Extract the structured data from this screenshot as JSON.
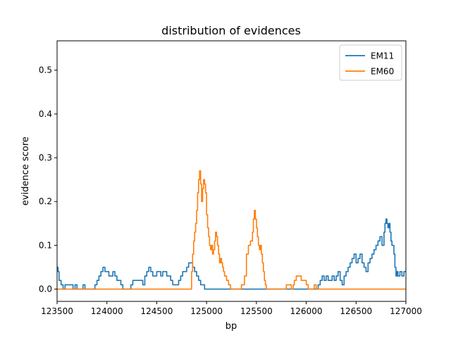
{
  "chart_data": {
    "type": "line",
    "title": "distribution of evidences",
    "xlabel": "bp",
    "ylabel": "evidence score",
    "xlim": [
      123500,
      127000
    ],
    "ylim": [
      -0.028,
      0.567
    ],
    "xticks": [
      123500,
      124000,
      124500,
      125000,
      125500,
      126000,
      126500,
      127000
    ],
    "yticks": [
      0.0,
      0.1,
      0.2,
      0.3,
      0.4,
      0.5
    ],
    "ytick_labels": [
      "0.0",
      "0.1",
      "0.2",
      "0.3",
      "0.4",
      "0.5"
    ],
    "grid": false,
    "legend": "top-right",
    "series": [
      {
        "name": "EM11",
        "color": "#1f77b4",
        "x": [
          123500,
          123510,
          123520,
          123540,
          123560,
          123580,
          123660,
          123680,
          123700,
          123760,
          123780,
          123880,
          123900,
          123920,
          123940,
          123960,
          123980,
          124020,
          124060,
          124080,
          124100,
          124140,
          124160,
          124240,
          124260,
          124360,
          124380,
          124400,
          124420,
          124440,
          124460,
          124500,
          124540,
          124560,
          124600,
          124640,
          124660,
          124720,
          124740,
          124760,
          124800,
          124820,
          124860,
          124880,
          124900,
          124920,
          124940,
          124960,
          124980,
          125000,
          125020,
          126080,
          126100,
          126120,
          126140,
          126160,
          126180,
          126200,
          126220,
          126260,
          126280,
          126300,
          126320,
          126340,
          126360,
          126380,
          126400,
          126420,
          126440,
          126460,
          126480,
          126500,
          126520,
          126540,
          126560,
          126580,
          126600,
          126620,
          126640,
          126660,
          126680,
          126700,
          126720,
          126740,
          126760,
          126780,
          126790,
          126800,
          126810,
          126820,
          126830,
          126840,
          126850,
          126860,
          126880,
          126890,
          126900,
          126910,
          126920,
          126940,
          126960,
          126980,
          127000
        ],
        "y": [
          0.05,
          0.04,
          0.02,
          0.01,
          0.0,
          0.01,
          0.0,
          0.01,
          0.0,
          0.01,
          0.0,
          0.01,
          0.02,
          0.03,
          0.04,
          0.05,
          0.04,
          0.03,
          0.04,
          0.03,
          0.02,
          0.01,
          0.0,
          0.01,
          0.02,
          0.01,
          0.03,
          0.04,
          0.05,
          0.04,
          0.03,
          0.04,
          0.03,
          0.04,
          0.03,
          0.02,
          0.01,
          0.02,
          0.03,
          0.04,
          0.05,
          0.06,
          0.05,
          0.04,
          0.03,
          0.02,
          0.01,
          0.01,
          0.0,
          0.0,
          0.0,
          0.0,
          0.0,
          0.01,
          0.02,
          0.03,
          0.02,
          0.03,
          0.02,
          0.03,
          0.02,
          0.03,
          0.04,
          0.02,
          0.01,
          0.03,
          0.04,
          0.05,
          0.06,
          0.07,
          0.08,
          0.06,
          0.07,
          0.08,
          0.06,
          0.05,
          0.04,
          0.06,
          0.07,
          0.08,
          0.09,
          0.1,
          0.11,
          0.12,
          0.1,
          0.13,
          0.15,
          0.16,
          0.15,
          0.14,
          0.15,
          0.13,
          0.11,
          0.1,
          0.08,
          0.05,
          0.03,
          0.04,
          0.03,
          0.04,
          0.03,
          0.04,
          0.04
        ]
      },
      {
        "name": "EM60",
        "color": "#ff7f0e",
        "x": [
          123500,
          124840,
          124850,
          124860,
          124870,
          124880,
          124890,
          124900,
          124910,
          124920,
          124930,
          124940,
          124950,
          124960,
          124970,
          124980,
          124990,
          125000,
          125010,
          125020,
          125030,
          125040,
          125050,
          125060,
          125070,
          125080,
          125090,
          125100,
          125110,
          125120,
          125130,
          125140,
          125150,
          125160,
          125170,
          125180,
          125190,
          125200,
          125220,
          125240,
          125260,
          125280,
          125300,
          125330,
          125350,
          125380,
          125400,
          125420,
          125440,
          125460,
          125470,
          125480,
          125490,
          125500,
          125510,
          125520,
          125530,
          125540,
          125550,
          125560,
          125570,
          125580,
          125590,
          125600,
          125610,
          125620,
          125640,
          125700,
          125780,
          125800,
          125820,
          125850,
          125860,
          125870,
          125880,
          125900,
          125930,
          125950,
          126000,
          126020,
          126060,
          126080,
          126100,
          126110,
          126120,
          126130,
          127000
        ],
        "y": [
          0.0,
          0.0,
          0.04,
          0.08,
          0.11,
          0.13,
          0.15,
          0.18,
          0.22,
          0.25,
          0.27,
          0.24,
          0.2,
          0.23,
          0.25,
          0.24,
          0.22,
          0.17,
          0.14,
          0.12,
          0.1,
          0.09,
          0.1,
          0.08,
          0.09,
          0.11,
          0.13,
          0.12,
          0.1,
          0.08,
          0.06,
          0.07,
          0.06,
          0.05,
          0.04,
          0.03,
          0.03,
          0.02,
          0.01,
          0.0,
          0.0,
          0.0,
          0.0,
          0.0,
          0.01,
          0.03,
          0.08,
          0.1,
          0.11,
          0.13,
          0.16,
          0.18,
          0.16,
          0.14,
          0.12,
          0.1,
          0.09,
          0.1,
          0.08,
          0.06,
          0.04,
          0.02,
          0.01,
          0.0,
          0.0,
          0.0,
          0.0,
          0.0,
          0.0,
          0.01,
          0.01,
          0.0,
          0.0,
          0.01,
          0.02,
          0.03,
          0.03,
          0.02,
          0.01,
          0.0,
          0.0,
          0.01,
          0.0,
          0.0,
          0.0,
          0.0,
          0.0
        ]
      }
    ]
  }
}
